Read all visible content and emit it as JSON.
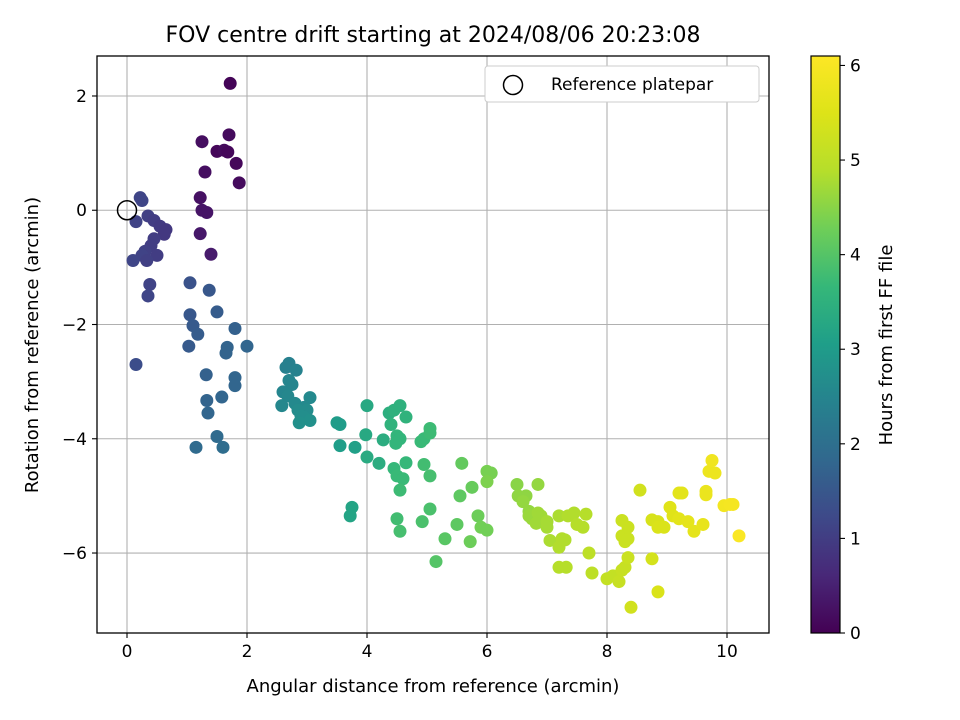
{
  "chart_data": {
    "type": "scatter",
    "title": "FOV centre drift starting at 2024/08/06 20:23:08",
    "xlabel": "Angular distance from reference (arcmin)",
    "ylabel": "Rotation from reference (arcmin)",
    "xlim": [
      -0.5,
      10.7
    ],
    "ylim": [
      -7.4,
      2.7
    ],
    "xticks": [
      0,
      2,
      4,
      6,
      8,
      10
    ],
    "yticks": [
      -6,
      -4,
      -2,
      0,
      2
    ],
    "grid": true,
    "legend": {
      "placement": "top-right",
      "entries": [
        {
          "label": "Reference platepar",
          "marker": "open-circle"
        }
      ]
    },
    "colorbar": {
      "label": "Hours from first FF file",
      "range": [
        0,
        6.1
      ],
      "ticks": [
        0,
        1,
        2,
        3,
        4,
        5,
        6
      ],
      "colormap": "viridis"
    },
    "reference_point": {
      "x": 0.0,
      "y": 0.0
    },
    "points": [
      {
        "x": 1.72,
        "y": 2.22,
        "c": 0.05
      },
      {
        "x": 1.7,
        "y": 1.32,
        "c": 0.15
      },
      {
        "x": 1.25,
        "y": 1.2,
        "c": 0.2
      },
      {
        "x": 1.5,
        "y": 1.03,
        "c": 0.1
      },
      {
        "x": 1.62,
        "y": 1.05,
        "c": 0.15
      },
      {
        "x": 1.68,
        "y": 1.02,
        "c": 0.1
      },
      {
        "x": 1.82,
        "y": 0.82,
        "c": 0.1
      },
      {
        "x": 1.3,
        "y": 0.67,
        "c": 0.2
      },
      {
        "x": 1.87,
        "y": 0.48,
        "c": 0.15
      },
      {
        "x": 1.22,
        "y": 0.22,
        "c": 0.25
      },
      {
        "x": 1.25,
        "y": 0.0,
        "c": 0.3
      },
      {
        "x": 1.33,
        "y": -0.04,
        "c": 0.3
      },
      {
        "x": 1.22,
        "y": -0.41,
        "c": 0.35
      },
      {
        "x": 1.4,
        "y": -0.77,
        "c": 0.4
      },
      {
        "x": 0.22,
        "y": 0.22,
        "c": 1.15
      },
      {
        "x": 0.25,
        "y": 0.17,
        "c": 1.15
      },
      {
        "x": 0.35,
        "y": -0.1,
        "c": 1.05
      },
      {
        "x": 0.45,
        "y": -0.18,
        "c": 1.0
      },
      {
        "x": 0.15,
        "y": -0.2,
        "c": 1.1
      },
      {
        "x": 0.55,
        "y": -0.28,
        "c": 0.95
      },
      {
        "x": 0.65,
        "y": -0.34,
        "c": 0.9
      },
      {
        "x": 0.62,
        "y": -0.42,
        "c": 0.9
      },
      {
        "x": 0.45,
        "y": -0.5,
        "c": 1.0
      },
      {
        "x": 0.4,
        "y": -0.62,
        "c": 1.0
      },
      {
        "x": 0.3,
        "y": -0.72,
        "c": 1.05
      },
      {
        "x": 0.25,
        "y": -0.79,
        "c": 1.1
      },
      {
        "x": 0.5,
        "y": -0.79,
        "c": 1.0
      },
      {
        "x": 0.33,
        "y": -0.88,
        "c": 1.05
      },
      {
        "x": 0.1,
        "y": -0.88,
        "c": 1.15
      },
      {
        "x": 0.38,
        "y": -1.3,
        "c": 1.1
      },
      {
        "x": 0.35,
        "y": -1.5,
        "c": 1.15
      },
      {
        "x": 0.15,
        "y": -2.7,
        "c": 1.3
      },
      {
        "x": 1.05,
        "y": -1.27,
        "c": 1.4
      },
      {
        "x": 1.37,
        "y": -1.4,
        "c": 1.5
      },
      {
        "x": 1.5,
        "y": -1.78,
        "c": 1.6
      },
      {
        "x": 1.05,
        "y": -1.83,
        "c": 1.5
      },
      {
        "x": 1.1,
        "y": -2.02,
        "c": 1.55
      },
      {
        "x": 1.18,
        "y": -2.17,
        "c": 1.6
      },
      {
        "x": 1.8,
        "y": -2.07,
        "c": 1.7
      },
      {
        "x": 1.03,
        "y": -2.38,
        "c": 1.55
      },
      {
        "x": 2.0,
        "y": -2.38,
        "c": 1.8
      },
      {
        "x": 1.67,
        "y": -2.4,
        "c": 1.75
      },
      {
        "x": 1.65,
        "y": -2.5,
        "c": 1.75
      },
      {
        "x": 1.32,
        "y": -2.88,
        "c": 1.7
      },
      {
        "x": 1.8,
        "y": -2.93,
        "c": 1.8
      },
      {
        "x": 1.8,
        "y": -3.07,
        "c": 1.8
      },
      {
        "x": 1.58,
        "y": -3.27,
        "c": 1.8
      },
      {
        "x": 1.33,
        "y": -3.33,
        "c": 1.75
      },
      {
        "x": 1.35,
        "y": -3.55,
        "c": 1.8
      },
      {
        "x": 1.5,
        "y": -3.96,
        "c": 1.9
      },
      {
        "x": 1.6,
        "y": -4.15,
        "c": 1.95
      },
      {
        "x": 1.15,
        "y": -4.15,
        "c": 1.9
      },
      {
        "x": 2.7,
        "y": -2.68,
        "c": 2.4
      },
      {
        "x": 2.65,
        "y": -2.75,
        "c": 2.4
      },
      {
        "x": 2.82,
        "y": -2.8,
        "c": 2.45
      },
      {
        "x": 2.7,
        "y": -2.98,
        "c": 2.5
      },
      {
        "x": 2.75,
        "y": -3.05,
        "c": 2.5
      },
      {
        "x": 2.6,
        "y": -3.18,
        "c": 2.5
      },
      {
        "x": 2.68,
        "y": -3.25,
        "c": 2.55
      },
      {
        "x": 3.05,
        "y": -3.28,
        "c": 2.6
      },
      {
        "x": 2.8,
        "y": -3.38,
        "c": 2.6
      },
      {
        "x": 2.58,
        "y": -3.42,
        "c": 2.55
      },
      {
        "x": 2.95,
        "y": -3.45,
        "c": 2.6
      },
      {
        "x": 2.85,
        "y": -3.5,
        "c": 2.65
      },
      {
        "x": 3.0,
        "y": -3.5,
        "c": 2.65
      },
      {
        "x": 2.9,
        "y": -3.6,
        "c": 2.7
      },
      {
        "x": 2.95,
        "y": -3.62,
        "c": 2.7
      },
      {
        "x": 3.05,
        "y": -3.68,
        "c": 2.75
      },
      {
        "x": 2.87,
        "y": -3.72,
        "c": 2.75
      },
      {
        "x": 3.5,
        "y": -3.72,
        "c": 3.0
      },
      {
        "x": 3.55,
        "y": -3.75,
        "c": 3.0
      },
      {
        "x": 3.55,
        "y": -4.12,
        "c": 3.05
      },
      {
        "x": 3.8,
        "y": -4.15,
        "c": 3.1
      },
      {
        "x": 3.75,
        "y": -5.2,
        "c": 3.2
      },
      {
        "x": 3.72,
        "y": -5.35,
        "c": 3.2
      },
      {
        "x": 4.0,
        "y": -3.42,
        "c": 3.3
      },
      {
        "x": 3.98,
        "y": -3.93,
        "c": 3.3
      },
      {
        "x": 4.0,
        "y": -4.32,
        "c": 3.35
      },
      {
        "x": 4.2,
        "y": -4.43,
        "c": 3.4
      },
      {
        "x": 4.27,
        "y": -4.02,
        "c": 3.4
      },
      {
        "x": 4.37,
        "y": -3.55,
        "c": 3.45
      },
      {
        "x": 4.45,
        "y": -3.5,
        "c": 3.5
      },
      {
        "x": 4.55,
        "y": -3.42,
        "c": 3.5
      },
      {
        "x": 4.4,
        "y": -3.75,
        "c": 3.55
      },
      {
        "x": 4.65,
        "y": -3.62,
        "c": 3.55
      },
      {
        "x": 4.5,
        "y": -3.95,
        "c": 3.6
      },
      {
        "x": 4.55,
        "y": -4.0,
        "c": 3.6
      },
      {
        "x": 4.48,
        "y": -4.08,
        "c": 3.6
      },
      {
        "x": 4.45,
        "y": -4.52,
        "c": 3.65
      },
      {
        "x": 4.5,
        "y": -4.65,
        "c": 3.7
      },
      {
        "x": 4.6,
        "y": -4.7,
        "c": 3.7
      },
      {
        "x": 4.65,
        "y": -4.42,
        "c": 3.65
      },
      {
        "x": 4.55,
        "y": -4.9,
        "c": 3.75
      },
      {
        "x": 4.5,
        "y": -5.4,
        "c": 3.8
      },
      {
        "x": 4.55,
        "y": -5.62,
        "c": 3.85
      },
      {
        "x": 4.9,
        "y": -4.05,
        "c": 3.7
      },
      {
        "x": 4.95,
        "y": -4.0,
        "c": 3.7
      },
      {
        "x": 5.05,
        "y": -3.82,
        "c": 3.75
      },
      {
        "x": 5.05,
        "y": -3.9,
        "c": 3.75
      },
      {
        "x": 4.95,
        "y": -4.45,
        "c": 3.8
      },
      {
        "x": 5.05,
        "y": -4.65,
        "c": 3.85
      },
      {
        "x": 5.05,
        "y": -5.23,
        "c": 3.9
      },
      {
        "x": 4.92,
        "y": -5.45,
        "c": 3.9
      },
      {
        "x": 5.15,
        "y": -6.15,
        "c": 4.0
      },
      {
        "x": 5.3,
        "y": -5.75,
        "c": 4.05
      },
      {
        "x": 5.5,
        "y": -5.5,
        "c": 4.1
      },
      {
        "x": 5.55,
        "y": -5.0,
        "c": 4.1
      },
      {
        "x": 5.58,
        "y": -4.43,
        "c": 4.15
      },
      {
        "x": 5.75,
        "y": -4.85,
        "c": 4.2
      },
      {
        "x": 5.72,
        "y": -5.8,
        "c": 4.25
      },
      {
        "x": 5.85,
        "y": -5.35,
        "c": 4.25
      },
      {
        "x": 5.9,
        "y": -5.55,
        "c": 4.3
      },
      {
        "x": 6.0,
        "y": -5.6,
        "c": 4.3
      },
      {
        "x": 6.0,
        "y": -4.57,
        "c": 4.35
      },
      {
        "x": 6.07,
        "y": -4.6,
        "c": 4.35
      },
      {
        "x": 6.0,
        "y": -4.75,
        "c": 4.4
      },
      {
        "x": 6.5,
        "y": -4.8,
        "c": 4.5
      },
      {
        "x": 6.52,
        "y": -5.0,
        "c": 4.55
      },
      {
        "x": 6.65,
        "y": -5.0,
        "c": 4.55
      },
      {
        "x": 6.6,
        "y": -5.1,
        "c": 4.6
      },
      {
        "x": 6.7,
        "y": -5.27,
        "c": 4.6
      },
      {
        "x": 6.7,
        "y": -5.35,
        "c": 4.65
      },
      {
        "x": 6.75,
        "y": -5.4,
        "c": 4.65
      },
      {
        "x": 6.85,
        "y": -4.8,
        "c": 4.6
      },
      {
        "x": 6.85,
        "y": -5.3,
        "c": 4.7
      },
      {
        "x": 6.9,
        "y": -5.35,
        "c": 4.7
      },
      {
        "x": 6.82,
        "y": -5.48,
        "c": 4.7
      },
      {
        "x": 7.0,
        "y": -5.45,
        "c": 4.75
      },
      {
        "x": 7.0,
        "y": -5.55,
        "c": 4.75
      },
      {
        "x": 7.05,
        "y": -5.78,
        "c": 4.8
      },
      {
        "x": 7.2,
        "y": -5.35,
        "c": 4.8
      },
      {
        "x": 7.2,
        "y": -5.9,
        "c": 4.85
      },
      {
        "x": 7.25,
        "y": -5.75,
        "c": 4.85
      },
      {
        "x": 7.3,
        "y": -5.77,
        "c": 4.85
      },
      {
        "x": 7.2,
        "y": -6.25,
        "c": 4.9
      },
      {
        "x": 7.32,
        "y": -6.25,
        "c": 4.9
      },
      {
        "x": 7.35,
        "y": -5.35,
        "c": 4.85
      },
      {
        "x": 7.45,
        "y": -5.3,
        "c": 4.85
      },
      {
        "x": 7.5,
        "y": -5.5,
        "c": 4.9
      },
      {
        "x": 7.6,
        "y": -5.55,
        "c": 4.9
      },
      {
        "x": 7.65,
        "y": -5.32,
        "c": 4.9
      },
      {
        "x": 7.7,
        "y": -6.0,
        "c": 5.0
      },
      {
        "x": 7.75,
        "y": -6.35,
        "c": 5.0
      },
      {
        "x": 8.0,
        "y": -6.45,
        "c": 5.1
      },
      {
        "x": 8.1,
        "y": -6.4,
        "c": 5.1
      },
      {
        "x": 8.2,
        "y": -6.5,
        "c": 5.15
      },
      {
        "x": 8.25,
        "y": -6.3,
        "c": 5.15
      },
      {
        "x": 8.3,
        "y": -6.25,
        "c": 5.15
      },
      {
        "x": 8.35,
        "y": -6.08,
        "c": 5.2
      },
      {
        "x": 8.25,
        "y": -5.7,
        "c": 5.2
      },
      {
        "x": 8.3,
        "y": -5.8,
        "c": 5.2
      },
      {
        "x": 8.35,
        "y": -5.75,
        "c": 5.2
      },
      {
        "x": 8.35,
        "y": -5.55,
        "c": 5.2
      },
      {
        "x": 8.25,
        "y": -5.43,
        "c": 5.2
      },
      {
        "x": 8.4,
        "y": -6.95,
        "c": 5.3
      },
      {
        "x": 8.55,
        "y": -4.9,
        "c": 5.3
      },
      {
        "x": 8.75,
        "y": -6.1,
        "c": 5.35
      },
      {
        "x": 8.75,
        "y": -5.42,
        "c": 5.4
      },
      {
        "x": 8.85,
        "y": -5.45,
        "c": 5.4
      },
      {
        "x": 8.85,
        "y": -5.55,
        "c": 5.45
      },
      {
        "x": 8.95,
        "y": -5.55,
        "c": 5.45
      },
      {
        "x": 8.85,
        "y": -6.68,
        "c": 5.45
      },
      {
        "x": 9.05,
        "y": -5.2,
        "c": 5.55
      },
      {
        "x": 9.1,
        "y": -5.35,
        "c": 5.55
      },
      {
        "x": 9.2,
        "y": -4.95,
        "c": 5.6
      },
      {
        "x": 9.25,
        "y": -4.95,
        "c": 5.6
      },
      {
        "x": 9.2,
        "y": -5.4,
        "c": 5.6
      },
      {
        "x": 9.35,
        "y": -5.45,
        "c": 5.65
      },
      {
        "x": 9.45,
        "y": -5.62,
        "c": 5.65
      },
      {
        "x": 9.6,
        "y": -5.5,
        "c": 5.7
      },
      {
        "x": 9.65,
        "y": -4.92,
        "c": 5.75
      },
      {
        "x": 9.65,
        "y": -4.98,
        "c": 5.75
      },
      {
        "x": 9.7,
        "y": -4.57,
        "c": 5.8
      },
      {
        "x": 9.8,
        "y": -4.6,
        "c": 5.8
      },
      {
        "x": 9.75,
        "y": -4.38,
        "c": 5.85
      },
      {
        "x": 9.95,
        "y": -5.17,
        "c": 5.9
      },
      {
        "x": 10.05,
        "y": -5.15,
        "c": 5.95
      },
      {
        "x": 10.1,
        "y": -5.15,
        "c": 5.95
      },
      {
        "x": 10.2,
        "y": -5.7,
        "c": 6.05
      }
    ]
  }
}
